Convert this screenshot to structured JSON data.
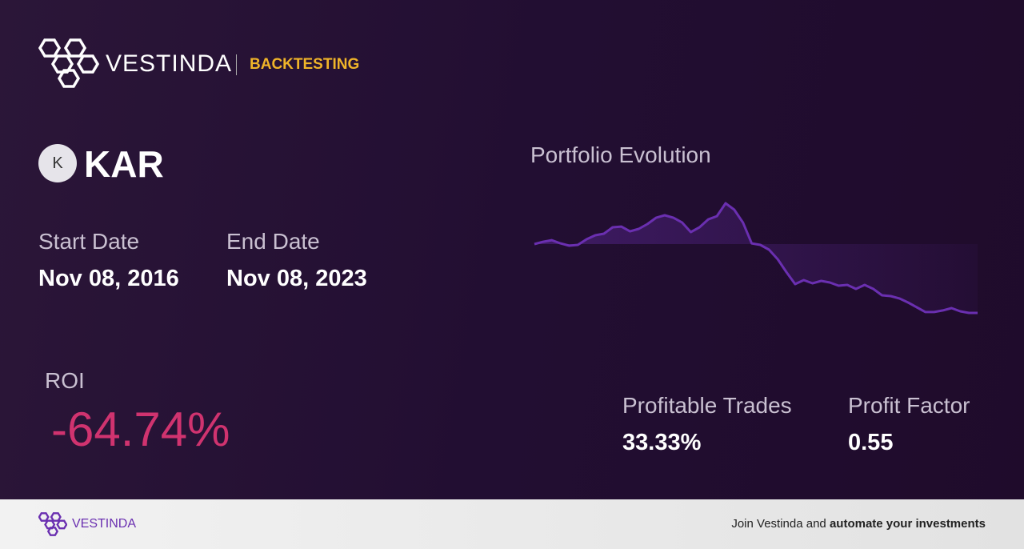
{
  "header": {
    "brand": "VESTINDA",
    "section": "BACKTESTING"
  },
  "ticker": {
    "icon": "K",
    "symbol": "KAR"
  },
  "dates": {
    "start_label": "Start Date",
    "start": "Nov 08, 2016",
    "end_label": "End Date",
    "end": "Nov 08, 2023"
  },
  "chart_data": {
    "type": "line",
    "title": "Portfolio Evolution",
    "color": "#6a2fb0",
    "values": [
      100,
      102.2,
      103.7,
      100.7,
      98.5,
      99.3,
      104.5,
      108.2,
      109.7,
      115.7,
      116.4,
      111.9,
      114.2,
      118.7,
      124.6,
      126.9,
      124.6,
      120.1,
      111.2,
      115.7,
      123.1,
      126.1,
      138.1,
      132.1,
      120.1,
      100.7,
      99.3,
      94.8,
      85.8,
      73.9,
      62.7,
      66.4,
      63.4,
      65.7,
      64.2,
      61.2,
      61.9,
      58.2,
      61.9,
      58.2,
      52.2,
      51.5,
      49.3,
      45.5,
      41.0,
      36.6,
      36.6,
      38.1,
      40.3,
      37.3,
      35.8,
      35.8
    ]
  },
  "stats": {
    "roi_label": "ROI",
    "roi": "-64.74%",
    "trades_label": "Profitable Trades",
    "trades": "33.33%",
    "factor_label": "Profit Factor",
    "factor": "0.55"
  },
  "footer": {
    "brand": "VESTINDA",
    "cta_prefix": "Join Vestinda and",
    "cta_bold": "automate your investments"
  }
}
